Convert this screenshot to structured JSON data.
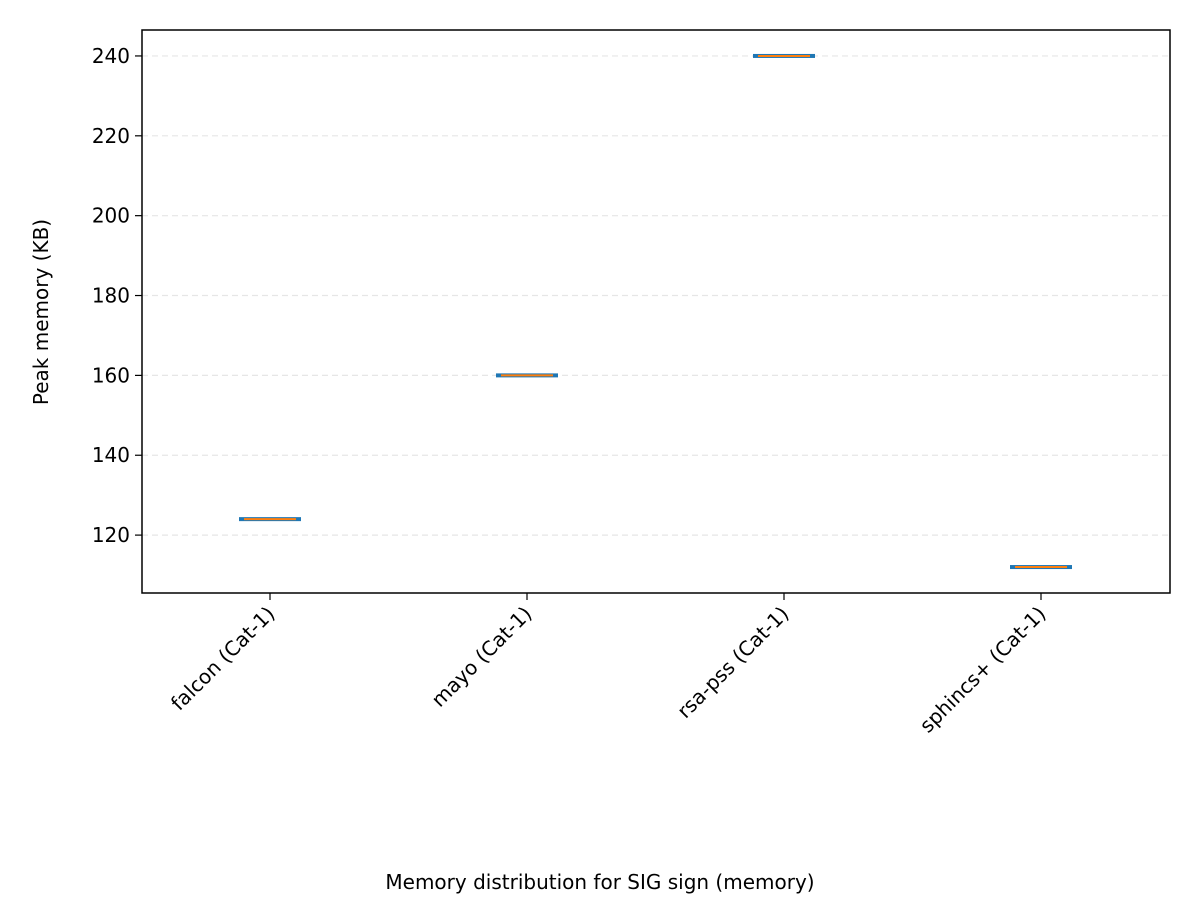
{
  "chart_data": {
    "type": "box",
    "title": "",
    "xlabel": "Memory distribution for SIG sign (memory)",
    "ylabel": "Peak memory (KB)",
    "categories": [
      "falcon (Cat-1)",
      "mayo (Cat-1)",
      "rsa-pss (Cat-1)",
      "sphincs+ (Cat-1)"
    ],
    "values": [
      124,
      160,
      240,
      112
    ],
    "ylim": [
      105.5,
      246.5
    ],
    "yticks": [
      120,
      140,
      160,
      180,
      200,
      220,
      240
    ],
    "grid": "y-dashed",
    "legend": "none",
    "colors": {
      "box": "#1f77b4",
      "median": "#ff7f0e",
      "grid": "#e6e6e6",
      "axis": "#000000"
    }
  }
}
